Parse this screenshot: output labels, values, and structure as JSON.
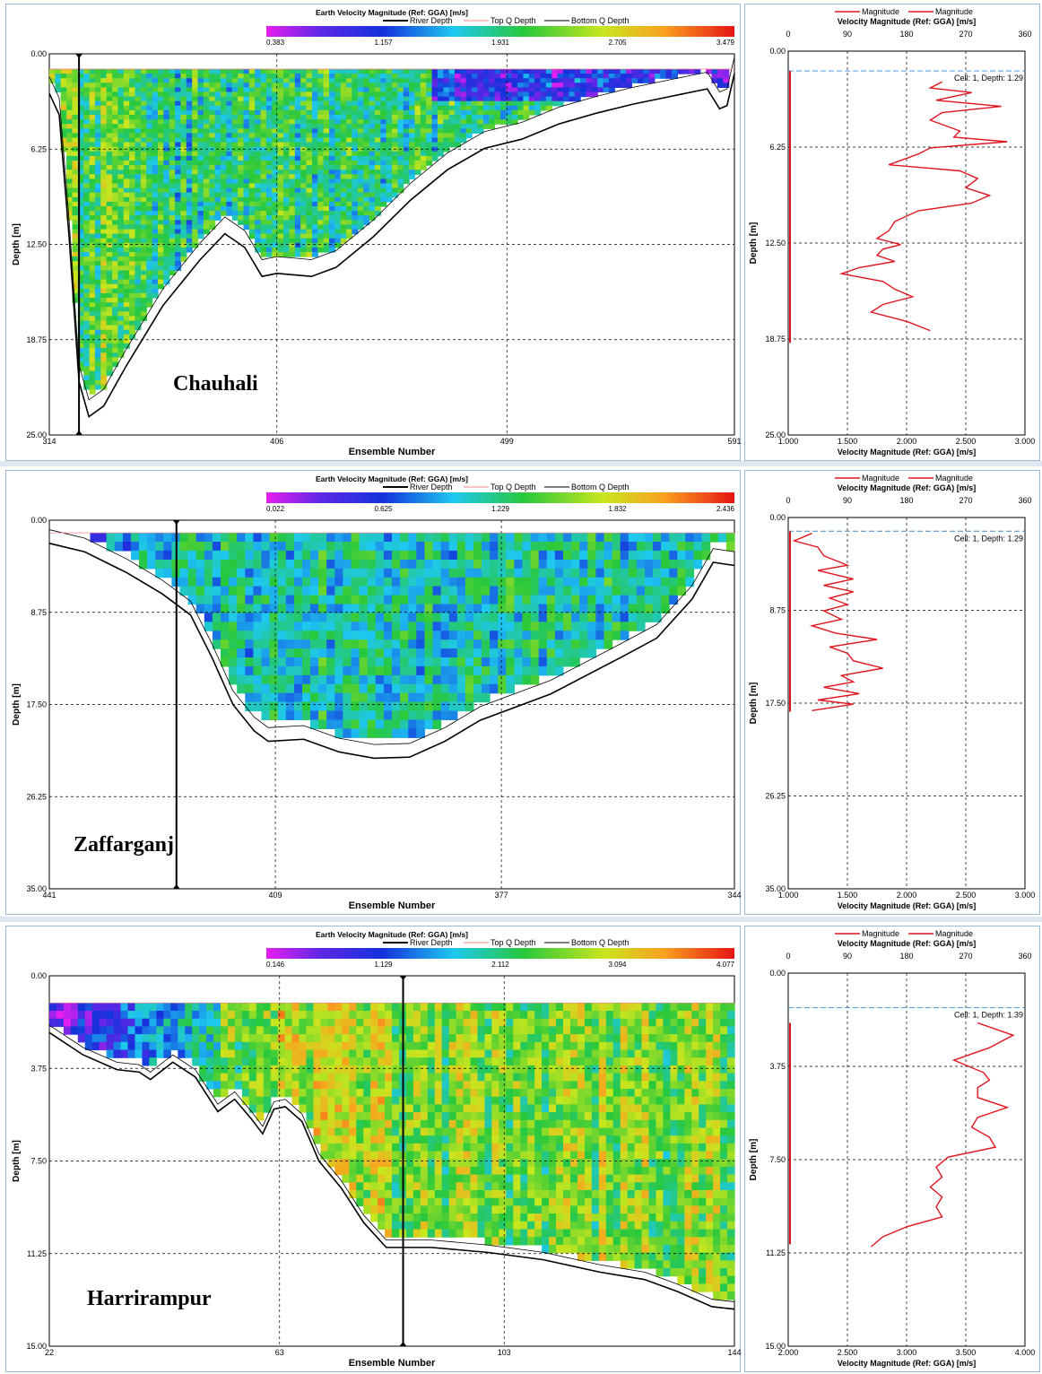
{
  "common": {
    "colorbar_title": "Earth Velocity Magnitude (Ref: GGA) [m/s]",
    "legend_left": [
      "River Depth",
      "Top Q Depth",
      "Bottom Q Depth"
    ],
    "ylabel": "Depth [m]",
    "xlabel": "Ensemble Number",
    "profile_legend": [
      "Magnitude",
      "Magnitude"
    ],
    "profile_title": "Velocity Magnitude (Ref: GGA) [m/s]",
    "direction_ticks": [
      "0",
      "90",
      "180",
      "270",
      "360"
    ],
    "colors": {
      "line": "#e0141e",
      "depth": "#000000",
      "cell": "#3a8fd0"
    }
  },
  "chart_data": [
    {
      "type": "heatmap",
      "location": "Chauhali",
      "colorbar_ticks": [
        "0.383",
        "1.157",
        "1.931",
        "2.705",
        "3.479"
      ],
      "color_range": [
        0.383,
        3.479
      ],
      "x_ticks": [
        "314",
        "406",
        "499",
        "591"
      ],
      "x_range": [
        314,
        591
      ],
      "y_ticks": [
        "0.00",
        "6.25",
        "12.50",
        "18.75",
        "25.00"
      ],
      "ylim": [
        0,
        25
      ],
      "top_depth": 1.0,
      "river_depth": [
        [
          314,
          2.6
        ],
        [
          318,
          4.0
        ],
        [
          322,
          12
        ],
        [
          326,
          21.5
        ],
        [
          330,
          23.8
        ],
        [
          336,
          23.1
        ],
        [
          345,
          20.5
        ],
        [
          360,
          16.5
        ],
        [
          375,
          13.5
        ],
        [
          385,
          11.8
        ],
        [
          393,
          12.7
        ],
        [
          400,
          14.6
        ],
        [
          406,
          14.4
        ],
        [
          420,
          14.6
        ],
        [
          430,
          14.0
        ],
        [
          445,
          12.0
        ],
        [
          460,
          9.6
        ],
        [
          475,
          7.6
        ],
        [
          490,
          6.2
        ],
        [
          505,
          5.6
        ],
        [
          520,
          4.6
        ],
        [
          535,
          3.9
        ],
        [
          550,
          3.3
        ],
        [
          565,
          2.8
        ],
        [
          580,
          2.3
        ],
        [
          585,
          3.6
        ],
        [
          588,
          3.4
        ],
        [
          591,
          1.3
        ]
      ],
      "gap_depth": 1.1,
      "vertical_marker": 326,
      "profile": {
        "x_ticks": [
          "1.000",
          "1.500",
          "2.000",
          "2.500",
          "3.000"
        ],
        "x_range": [
          1.0,
          3.0
        ],
        "y_ticks": [
          "0.00",
          "6.25",
          "12.50",
          "18.75",
          "25.00"
        ],
        "ylim": [
          0,
          25
        ],
        "cell_label": "Cell: 1, Depth: 1.29",
        "cell_depth": 1.29,
        "depth": [
          2.0,
          2.4,
          2.7,
          3.2,
          3.6,
          4.0,
          4.5,
          5.2,
          5.6,
          5.9,
          6.3,
          6.7,
          7.4,
          7.8,
          8.3,
          8.9,
          9.4,
          9.9,
          10.4,
          11.1,
          11.7,
          12.2,
          12.6,
          12.9,
          13.3,
          13.7,
          14.1,
          14.5,
          15.0,
          15.5,
          16.0,
          16.5,
          17.0,
          17.6,
          18.2
        ],
        "values": [
          2.3,
          2.2,
          2.55,
          2.25,
          2.8,
          2.3,
          2.2,
          2.45,
          2.4,
          2.85,
          2.2,
          2.1,
          1.85,
          2.45,
          2.6,
          2.5,
          2.7,
          2.55,
          2.1,
          1.9,
          1.85,
          1.75,
          1.95,
          1.8,
          1.75,
          1.9,
          1.6,
          1.45,
          1.8,
          1.9,
          2.05,
          1.8,
          1.7,
          2.0,
          2.2
        ],
        "direction_depth": [
          1.3,
          19.0
        ]
      }
    },
    {
      "type": "heatmap",
      "location": "Zaffarganj",
      "colorbar_ticks": [
        "0.022",
        "0.625",
        "1.229",
        "1.832",
        "2.436"
      ],
      "color_range": [
        0.022,
        2.436
      ],
      "x_ticks": [
        "441",
        "409",
        "377",
        "344"
      ],
      "x_range": [
        441,
        344
      ],
      "y_ticks": [
        "0.00",
        "8.75",
        "17.50",
        "26.25",
        "35.00"
      ],
      "ylim": [
        0,
        35
      ],
      "top_depth": 1.2,
      "river_depth": [
        [
          441,
          2.2
        ],
        [
          436,
          3.0
        ],
        [
          430,
          5.0
        ],
        [
          425,
          7.0
        ],
        [
          421,
          9.0
        ],
        [
          418,
          13.0
        ],
        [
          415,
          17.5
        ],
        [
          412,
          20.0
        ],
        [
          410,
          21.0
        ],
        [
          405,
          20.8
        ],
        [
          400,
          22.0
        ],
        [
          395,
          22.6
        ],
        [
          390,
          22.5
        ],
        [
          385,
          21.0
        ],
        [
          380,
          19.0
        ],
        [
          370,
          16.5
        ],
        [
          360,
          13.0
        ],
        [
          355,
          11.2
        ],
        [
          350,
          7.5
        ],
        [
          347,
          4.0
        ],
        [
          344,
          4.3
        ]
      ],
      "gap_depth": 1.3,
      "vertical_marker": 423,
      "profile": {
        "x_ticks": [
          "1.000",
          "1.500",
          "2.000",
          "2.500",
          "3.000"
        ],
        "x_range": [
          1.0,
          3.0
        ],
        "y_ticks": [
          "0.00",
          "8.75",
          "17.50",
          "26.25",
          "35.00"
        ],
        "ylim": [
          0,
          35
        ],
        "cell_label": "Cell: 1, Depth: 1.29",
        "cell_depth": 1.29,
        "depth": [
          1.5,
          2.2,
          2.8,
          3.6,
          4.5,
          5.0,
          5.8,
          6.4,
          7.0,
          7.6,
          8.2,
          8.8,
          9.6,
          10.2,
          10.9,
          11.5,
          12.2,
          12.8,
          13.5,
          14.2,
          14.9,
          15.5,
          16.0,
          16.6,
          17.2,
          17.6,
          18.2
        ],
        "values": [
          1.2,
          1.05,
          1.25,
          1.3,
          1.5,
          1.25,
          1.55,
          1.3,
          1.55,
          1.35,
          1.5,
          1.3,
          1.45,
          1.2,
          1.4,
          1.75,
          1.35,
          1.5,
          1.55,
          1.8,
          1.45,
          1.55,
          1.3,
          1.6,
          1.25,
          1.55,
          1.2
        ],
        "direction_depth": [
          1.3,
          18.3
        ]
      }
    },
    {
      "type": "heatmap",
      "location": "Harrirampur",
      "colorbar_ticks": [
        "0.146",
        "1.129",
        "2.112",
        "3.094",
        "4.077"
      ],
      "color_range": [
        0.146,
        4.077
      ],
      "x_ticks": [
        "22",
        "63",
        "103",
        "144"
      ],
      "x_range": [
        22,
        144
      ],
      "y_ticks": [
        "0.00",
        "3.75",
        "7.50",
        "11.25",
        "15.00"
      ],
      "ylim": [
        0,
        15
      ],
      "top_depth": 1.1,
      "river_depth": [
        [
          22,
          2.3
        ],
        [
          28,
          3.2
        ],
        [
          34,
          3.8
        ],
        [
          38,
          3.9
        ],
        [
          40,
          4.2
        ],
        [
          44,
          3.5
        ],
        [
          48,
          4.1
        ],
        [
          52,
          5.5
        ],
        [
          55,
          5.0
        ],
        [
          58,
          5.8
        ],
        [
          60,
          6.4
        ],
        [
          62,
          5.4
        ],
        [
          64,
          5.3
        ],
        [
          67,
          5.9
        ],
        [
          70,
          7.5
        ],
        [
          74,
          8.6
        ],
        [
          78,
          10.0
        ],
        [
          82,
          11.0
        ],
        [
          86,
          11.0
        ],
        [
          90,
          11.0
        ],
        [
          100,
          11.2
        ],
        [
          110,
          11.5
        ],
        [
          120,
          12.0
        ],
        [
          128,
          12.3
        ],
        [
          134,
          12.8
        ],
        [
          140,
          13.4
        ],
        [
          144,
          13.5
        ]
      ],
      "gap_depth": 0.3,
      "vertical_marker": 85,
      "profile": {
        "x_ticks": [
          "2.000",
          "2.500",
          "3.000",
          "3.500",
          "4.000"
        ],
        "x_range": [
          2.0,
          4.0
        ],
        "y_ticks": [
          "0.00",
          "3.75",
          "7.50",
          "11.25",
          "15.00"
        ],
        "ylim": [
          0,
          15
        ],
        "cell_label": "Cell: 1, Depth: 1.39",
        "cell_depth": 1.39,
        "depth": [
          2.0,
          2.5,
          3.0,
          3.5,
          4.0,
          4.3,
          4.6,
          5.0,
          5.4,
          5.8,
          6.2,
          6.6,
          7.0,
          7.4,
          7.8,
          8.2,
          8.6,
          9.0,
          9.4,
          9.8,
          10.2,
          10.6,
          11.0
        ],
        "values": [
          3.6,
          3.9,
          3.7,
          3.4,
          3.65,
          3.7,
          3.6,
          3.6,
          3.85,
          3.6,
          3.55,
          3.7,
          3.75,
          3.35,
          3.25,
          3.3,
          3.2,
          3.3,
          3.25,
          3.3,
          3.0,
          2.8,
          2.7
        ],
        "direction_depth": [
          2.0,
          10.9
        ]
      }
    }
  ]
}
